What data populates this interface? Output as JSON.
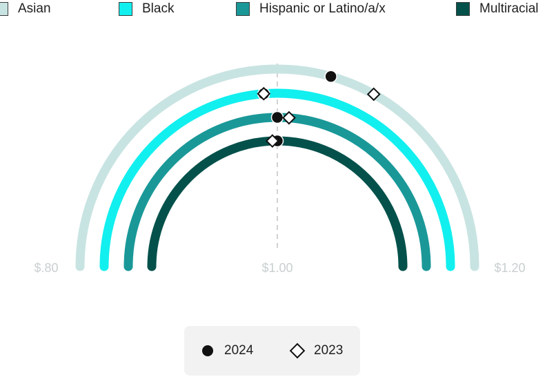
{
  "chart_data": {
    "type": "radial-arc",
    "axis": {
      "ticks": [
        0.8,
        1.0,
        1.2
      ],
      "tick_labels": [
        "$.80",
        "$1.00",
        "$1.20"
      ],
      "range": [
        0.8,
        1.2
      ]
    },
    "legend": {
      "position": "top"
    },
    "series": [
      {
        "name": "Asian",
        "color": "#c8e4e2",
        "value_2024": 1.035,
        "value_2023": 1.065
      },
      {
        "name": "Black",
        "color": "#12efef",
        "value_2024": 0.99,
        "value_2023": 0.99
      },
      {
        "name": "Hispanic or Latino/a/x",
        "color": "#1a9898",
        "value_2024": 1.0,
        "value_2023": 1.01
      },
      {
        "name": "Multiracial",
        "color": "#04514b",
        "value_2024": 1.0,
        "value_2023": 0.995
      }
    ],
    "markers": [
      {
        "key": "2024",
        "label": "2024",
        "shape": "circle"
      },
      {
        "key": "2023",
        "label": "2023",
        "shape": "diamond"
      }
    ]
  }
}
